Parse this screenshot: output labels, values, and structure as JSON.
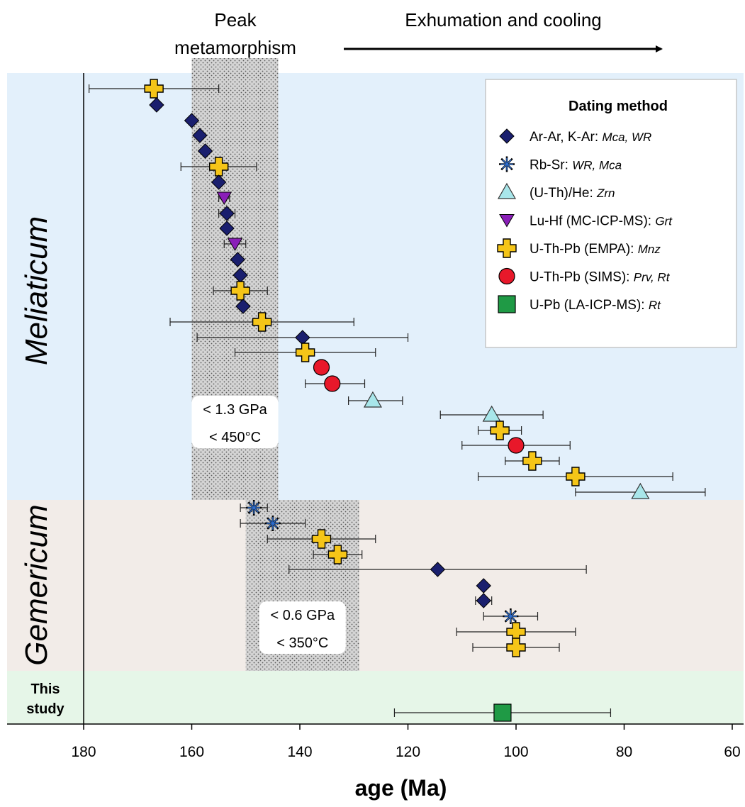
{
  "chart_data": {
    "type": "scatter",
    "xlabel": "age (Ma)",
    "xlim": [
      180,
      60
    ],
    "x_reversed": true,
    "xticks": [
      180,
      160,
      140,
      120,
      100,
      80,
      60
    ],
    "top_labels": {
      "peak": [
        "Peak",
        "metamorphism"
      ],
      "exhumation": "Exhumation and cooling"
    },
    "bands": [
      {
        "label": "Meliaticum",
        "color": "#e3f0fb",
        "peak_range": [
          160,
          144
        ],
        "pt_lines": [
          "< 1.3 GPa",
          "< 450°C"
        ]
      },
      {
        "label": "Gemericum",
        "color": "#f2ece8",
        "peak_range": [
          150,
          129
        ],
        "pt_lines": [
          "< 0.6 GPa",
          "< 350°C"
        ]
      },
      {
        "label": "This study",
        "label_lines": [
          "This",
          "study"
        ],
        "color": "#e6f6e8"
      }
    ],
    "legend": {
      "title": "Dating method",
      "position": "top-right",
      "entries": [
        {
          "method": "ar",
          "text": "Ar-Ar, K-Ar: ",
          "minerals": "Mca, WR"
        },
        {
          "method": "rbsr",
          "text": "Rb-Sr: ",
          "minerals": "WR, Mca"
        },
        {
          "method": "uthhe",
          "text": "(U-Th)/He: ",
          "minerals": "Zrn"
        },
        {
          "method": "luhf",
          "text": "Lu-Hf (MC-ICP-MS): ",
          "minerals": "Grt"
        },
        {
          "method": "empa",
          "text": "U-Th-Pb (EMPA): ",
          "minerals": "Mnz"
        },
        {
          "method": "sims",
          "text": "U-Th-Pb (SIMS): ",
          "minerals": "Prv, Rt"
        },
        {
          "method": "laicp",
          "text": "U-Pb (LA-ICP-MS): ",
          "minerals": "Rt"
        }
      ]
    },
    "colors": {
      "ar": "#1a1f6e",
      "rbsr": "#2f6fd0",
      "uthhe": "#a8e6ea",
      "luhf": "#8a1fb8",
      "empa": "#f5c518",
      "sims": "#e8182a",
      "laicp": "#1f9a45"
    },
    "series": [
      {
        "band": "Meliaticum",
        "method": "empa",
        "x": 167,
        "err": [
          179,
          155
        ]
      },
      {
        "band": "Meliaticum",
        "method": "ar",
        "x": 166.5
      },
      {
        "band": "Meliaticum",
        "method": "ar",
        "x": 160
      },
      {
        "band": "Meliaticum",
        "method": "ar",
        "x": 158.5
      },
      {
        "band": "Meliaticum",
        "method": "ar",
        "x": 157.5
      },
      {
        "band": "Meliaticum",
        "method": "empa",
        "x": 155,
        "err": [
          162,
          148
        ]
      },
      {
        "band": "Meliaticum",
        "method": "ar",
        "x": 155
      },
      {
        "band": "Meliaticum",
        "method": "luhf",
        "x": 154,
        "err": [
          155,
          153
        ]
      },
      {
        "band": "Meliaticum",
        "method": "ar",
        "x": 153.5,
        "err": [
          155,
          152
        ]
      },
      {
        "band": "Meliaticum",
        "method": "ar",
        "x": 153.5
      },
      {
        "band": "Meliaticum",
        "method": "luhf",
        "x": 152,
        "err": [
          154,
          150
        ]
      },
      {
        "band": "Meliaticum",
        "method": "ar",
        "x": 151.5
      },
      {
        "band": "Meliaticum",
        "method": "ar",
        "x": 151
      },
      {
        "band": "Meliaticum",
        "method": "empa",
        "x": 151,
        "err": [
          156,
          146
        ]
      },
      {
        "band": "Meliaticum",
        "method": "ar",
        "x": 150.5
      },
      {
        "band": "Meliaticum",
        "method": "empa",
        "x": 147,
        "err": [
          164,
          130
        ]
      },
      {
        "band": "Meliaticum",
        "method": "ar",
        "x": 139.5,
        "err": [
          159,
          120
        ]
      },
      {
        "band": "Meliaticum",
        "method": "empa",
        "x": 139,
        "err": [
          152,
          126
        ]
      },
      {
        "band": "Meliaticum",
        "method": "sims",
        "x": 136
      },
      {
        "band": "Meliaticum",
        "method": "sims",
        "x": 134,
        "err": [
          139,
          128
        ]
      },
      {
        "band": "Meliaticum",
        "method": "uthhe",
        "x": 126.5,
        "err": [
          131,
          121
        ]
      },
      {
        "band": "Meliaticum",
        "method": "uthhe",
        "x": 104.5,
        "err": [
          114,
          95
        ]
      },
      {
        "band": "Meliaticum",
        "method": "empa",
        "x": 103,
        "err": [
          107,
          99
        ]
      },
      {
        "band": "Meliaticum",
        "method": "sims",
        "x": 100,
        "err": [
          110,
          90
        ]
      },
      {
        "band": "Meliaticum",
        "method": "empa",
        "x": 97,
        "err": [
          102,
          92
        ]
      },
      {
        "band": "Meliaticum",
        "method": "empa",
        "x": 89,
        "err": [
          107,
          71
        ]
      },
      {
        "band": "Meliaticum",
        "method": "uthhe",
        "x": 77,
        "err": [
          89,
          65
        ]
      },
      {
        "band": "Gemericum",
        "method": "rbsr",
        "x": 148.5,
        "err": [
          151,
          146
        ]
      },
      {
        "band": "Gemericum",
        "method": "rbsr",
        "x": 145,
        "err": [
          151,
          139
        ]
      },
      {
        "band": "Gemericum",
        "method": "empa",
        "x": 136,
        "err": [
          146,
          126
        ]
      },
      {
        "band": "Gemericum",
        "method": "empa",
        "x": 133,
        "err": [
          137.5,
          128.5
        ]
      },
      {
        "band": "Gemericum",
        "method": "ar",
        "x": 114.5,
        "err": [
          142,
          87
        ]
      },
      {
        "band": "Gemericum",
        "method": "ar",
        "x": 106
      },
      {
        "band": "Gemericum",
        "method": "ar",
        "x": 106,
        "err": [
          107.5,
          104.5
        ]
      },
      {
        "band": "Gemericum",
        "method": "rbsr",
        "x": 101,
        "err": [
          106,
          96
        ]
      },
      {
        "band": "Gemericum",
        "method": "empa",
        "x": 100,
        "err": [
          111,
          89
        ]
      },
      {
        "band": "Gemericum",
        "method": "empa",
        "x": 100,
        "err": [
          108,
          92
        ]
      },
      {
        "band": "This study",
        "method": "laicp",
        "x": 102.5,
        "err": [
          122.5,
          82.5
        ]
      }
    ]
  }
}
